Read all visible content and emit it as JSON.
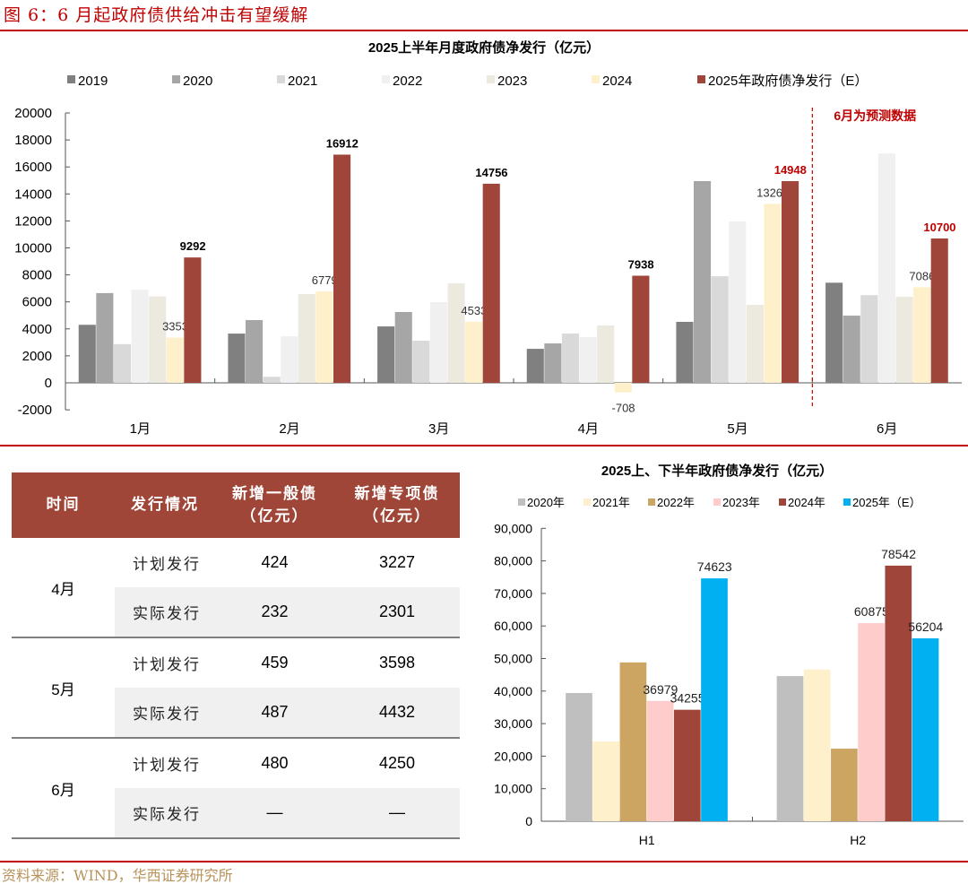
{
  "figure": {
    "title": "图 6：6 月起政府债供给冲击有望缓解",
    "source": "资料来源：WIND，华西证券研究所"
  },
  "chart_data": [
    {
      "type": "bar",
      "title": "2025上半年月度政府债净发行（亿元）",
      "xlabel": "",
      "ylabel": "",
      "ylim": [
        -2000,
        20000
      ],
      "yticks": [
        -2000,
        0,
        2000,
        4000,
        6000,
        8000,
        10000,
        12000,
        14000,
        16000,
        18000,
        20000
      ],
      "grid": false,
      "legend_position": "top",
      "categories": [
        "1月",
        "2月",
        "3月",
        "4月",
        "5月",
        "6月"
      ],
      "series": [
        {
          "name": "2019",
          "color": "#808080",
          "values": [
            4300,
            3650,
            4180,
            2520,
            4520,
            7420
          ]
        },
        {
          "name": "2020",
          "color": "#a6a6a6",
          "values": [
            6650,
            4650,
            5250,
            2920,
            14950,
            4980
          ]
        },
        {
          "name": "2021",
          "color": "#d9d9d9",
          "values": [
            2870,
            450,
            3120,
            3650,
            7900,
            6500
          ]
        },
        {
          "name": "2022",
          "color": "#f0f0f0",
          "values": [
            6900,
            3450,
            5980,
            3390,
            11960,
            17000
          ]
        },
        {
          "name": "2023",
          "color": "#ece9df",
          "values": [
            6400,
            6580,
            7380,
            4250,
            5780,
            6380
          ]
        },
        {
          "name": "2024",
          "color": "#fff0cc",
          "values": [
            3353,
            6779,
            4533,
            -708,
            13262,
            7086
          ]
        },
        {
          "name": "2025年政府债净发行（E）",
          "color": "#a0453a",
          "values": [
            9292,
            16912,
            14756,
            7938,
            14948,
            10700
          ]
        }
      ],
      "data_labels": [
        {
          "series": "2024",
          "category": "1月",
          "text": "3353"
        },
        {
          "series": "2024",
          "category": "2月",
          "text": "6779"
        },
        {
          "series": "2024",
          "category": "3月",
          "text": "4533"
        },
        {
          "series": "2024",
          "category": "4月",
          "text": "-708"
        },
        {
          "series": "2024",
          "category": "5月",
          "text": "13262"
        },
        {
          "series": "2024",
          "category": "6月",
          "text": "7086"
        },
        {
          "series": "2025年政府债净发行（E）",
          "category": "1月",
          "text": "9292",
          "bold": true,
          "color": "#000000"
        },
        {
          "series": "2025年政府债净发行（E）",
          "category": "2月",
          "text": "16912",
          "bold": true,
          "color": "#000000"
        },
        {
          "series": "2025年政府债净发行（E）",
          "category": "3月",
          "text": "14756",
          "bold": true,
          "color": "#000000"
        },
        {
          "series": "2025年政府债净发行（E）",
          "category": "4月",
          "text": "7938",
          "bold": true,
          "color": "#000000"
        },
        {
          "series": "2025年政府债净发行（E）",
          "category": "5月",
          "text": "14948",
          "bold": true,
          "color": "#c00000"
        },
        {
          "series": "2025年政府债净发行（E）",
          "category": "6月",
          "text": "10700",
          "bold": true,
          "color": "#c00000"
        }
      ],
      "annotation": {
        "text": "6月为预测数据",
        "color": "#c00000",
        "divider": "dashed line between 5月 and 6月"
      }
    },
    {
      "type": "bar",
      "title": "2025上、下半年政府债净发行（亿元）",
      "xlabel": "",
      "ylabel": "",
      "ylim": [
        0,
        90000
      ],
      "yticks": [
        "0",
        "10,000",
        "20,000",
        "30,000",
        "40,000",
        "50,000",
        "60,000",
        "70,000",
        "80,000",
        "90,000"
      ],
      "grid": false,
      "legend_position": "top",
      "categories": [
        "H1",
        "H2"
      ],
      "series": [
        {
          "name": "2020年",
          "color": "#bfbfbf",
          "values": [
            39400,
            44600
          ]
        },
        {
          "name": "2021年",
          "color": "#fff0cc",
          "values": [
            24500,
            46600
          ]
        },
        {
          "name": "2022年",
          "color": "#cca562",
          "values": [
            48800,
            22300
          ]
        },
        {
          "name": "2023年",
          "color": "#ffcccc",
          "values": [
            36979,
            60875
          ]
        },
        {
          "name": "2024年",
          "color": "#a0453a",
          "values": [
            34255,
            78542
          ]
        },
        {
          "name": "2025年（E）",
          "color": "#00b0f0",
          "values": [
            74623,
            56204
          ]
        }
      ],
      "data_labels": [
        {
          "series": "2023年",
          "category": "H1",
          "text": "36979"
        },
        {
          "series": "2024年",
          "category": "H1",
          "text": "34255"
        },
        {
          "series": "2025年（E）",
          "category": "H1",
          "text": "74623"
        },
        {
          "series": "2023年",
          "category": "H2",
          "text": "60875"
        },
        {
          "series": "2024年",
          "category": "H2",
          "text": "78542"
        },
        {
          "series": "2025年（E）",
          "category": "H2",
          "text": "56204"
        }
      ]
    }
  ],
  "table": {
    "headers": [
      "时间",
      "发行情况",
      "新增一般债\n（亿元）",
      "新增专项债\n（亿元）"
    ],
    "groups": [
      {
        "month": "4月",
        "rows": [
          {
            "label": "计划发行",
            "general": "424",
            "special": "3227"
          },
          {
            "label": "实际发行",
            "general": "232",
            "special": "2301"
          }
        ]
      },
      {
        "month": "5月",
        "rows": [
          {
            "label": "计划发行",
            "general": "459",
            "special": "3598"
          },
          {
            "label": "实际发行",
            "general": "487",
            "special": "4432"
          }
        ]
      },
      {
        "month": "6月",
        "rows": [
          {
            "label": "计划发行",
            "general": "480",
            "special": "4250"
          },
          {
            "label": "实际发行",
            "general": "—",
            "special": "—"
          }
        ]
      }
    ]
  }
}
